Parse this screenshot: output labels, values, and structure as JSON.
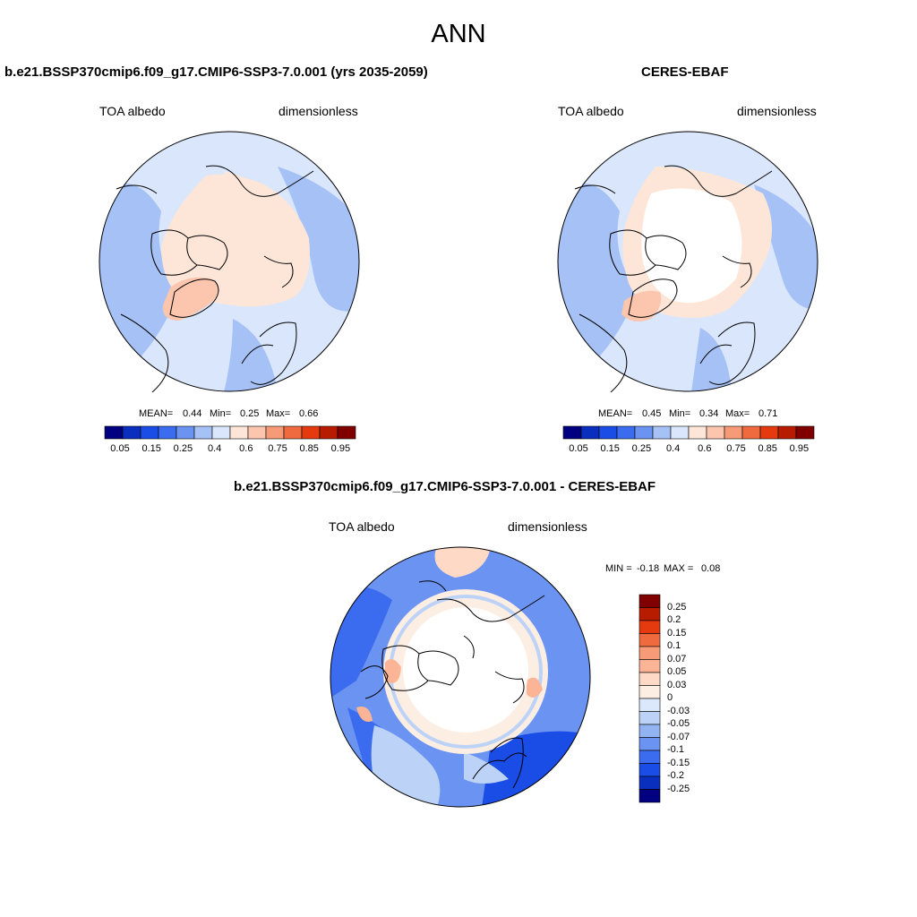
{
  "season": "ANN",
  "panels": {
    "model": {
      "title": "b.e21.BSSP370cmip6.f09_g17.CMIP6-SSP3-7.0.001 (yrs 2035-2059)",
      "var_label": "TOA albedo",
      "units": "dimensionless",
      "stats": {
        "mean_label": "MEAN=",
        "mean": "0.44",
        "min_label": "Min=",
        "min": "0.25",
        "max_label": "Max=",
        "max": "0.66"
      }
    },
    "obs": {
      "title": "CERES-EBAF",
      "var_label": "TOA albedo",
      "units": "dimensionless",
      "stats": {
        "mean_label": "MEAN=",
        "mean": "0.45",
        "min_label": "Min=",
        "min": "0.34",
        "max_label": "Max=",
        "max": "0.71"
      }
    },
    "diff": {
      "title": "b.e21.BSSP370cmip6.f09_g17.CMIP6-SSP3-7.0.001 - CERES-EBAF",
      "var_label": "TOA albedo",
      "units": "dimensionless",
      "stats": {
        "min_label": "MIN =",
        "min": "-0.18",
        "max_label": "MAX =",
        "max": "0.08"
      }
    }
  },
  "colorbars": {
    "abs": {
      "tick_labels": [
        "0.05",
        "0.15",
        "0.25",
        "0.4",
        "0.6",
        "0.75",
        "0.85",
        "0.95"
      ],
      "colors": [
        "#000080",
        "#0a2fbf",
        "#1a4ce6",
        "#3b6cf0",
        "#6b93f2",
        "#a6c1f5",
        "#d9e6fb",
        "#fde6d8",
        "#fbc5ae",
        "#f79a78",
        "#f06a40",
        "#e53a10",
        "#b81c00",
        "#800000"
      ]
    },
    "diff": {
      "tick_labels": [
        "0.25",
        "0.2",
        "0.15",
        "0.1",
        "0.07",
        "0.05",
        "0.03",
        "0",
        "-0.03",
        "-0.05",
        "-0.07",
        "-0.1",
        "-0.15",
        "-0.2",
        "-0.25"
      ],
      "colors": [
        "#800000",
        "#b81c00",
        "#e53a10",
        "#f06a40",
        "#f79a78",
        "#fbb596",
        "#fdd9c6",
        "#fdeee3",
        "#dbe7fb",
        "#bcd2f7",
        "#92b4f3",
        "#6b93f2",
        "#3b6cf0",
        "#1a4ce6",
        "#0a2fbf",
        "#000080"
      ]
    }
  },
  "colors": {
    "land_light_blue": "#d9e6fb",
    "mid_blue": "#a6c1f5",
    "light_salmon": "#fde6d8",
    "salmon": "#fbc5ae",
    "strong_blue": "#1a4ce6"
  }
}
